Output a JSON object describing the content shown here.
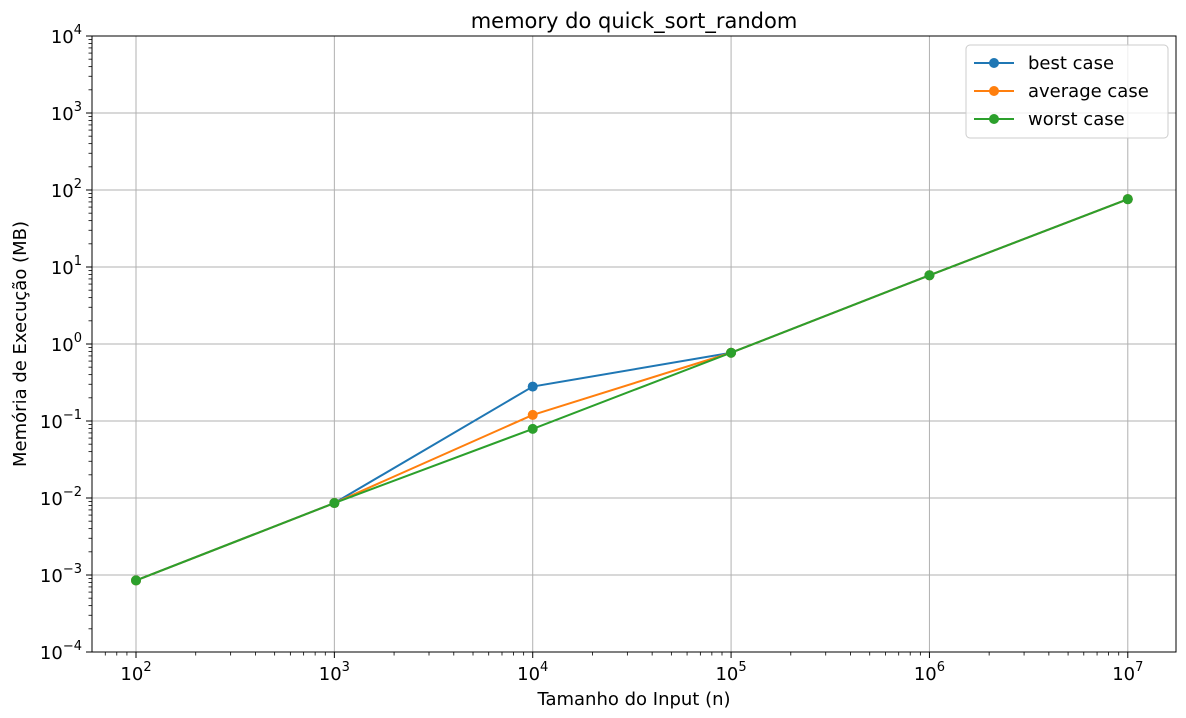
{
  "chart_data": {
    "type": "line",
    "title": "memory do quick_sort_random",
    "xlabel": "Tamanho do Input (n)",
    "ylabel": "Memória de Execução (MB)",
    "xscale": "log",
    "yscale": "log",
    "x": [
      100,
      1000,
      10000,
      100000,
      1000000,
      10000000
    ],
    "xlim": [
      60,
      17500000
    ],
    "ylim": [
      0.0001,
      10000
    ],
    "x_tick_labels": [
      {
        "base": "10",
        "exp": "2",
        "value": 100
      },
      {
        "base": "10",
        "exp": "3",
        "value": 1000
      },
      {
        "base": "10",
        "exp": "4",
        "value": 10000
      },
      {
        "base": "10",
        "exp": "5",
        "value": 100000
      },
      {
        "base": "10",
        "exp": "6",
        "value": 1000000
      },
      {
        "base": "10",
        "exp": "7",
        "value": 10000000
      }
    ],
    "y_tick_labels": [
      {
        "base": "10",
        "exp": "−4",
        "value": 0.0001
      },
      {
        "base": "10",
        "exp": "−3",
        "value": 0.001
      },
      {
        "base": "10",
        "exp": "−2",
        "value": 0.01
      },
      {
        "base": "10",
        "exp": "−1",
        "value": 0.1
      },
      {
        "base": "10",
        "exp": "0",
        "value": 1
      },
      {
        "base": "10",
        "exp": "1",
        "value": 10
      },
      {
        "base": "10",
        "exp": "2",
        "value": 100
      },
      {
        "base": "10",
        "exp": "3",
        "value": 1000
      },
      {
        "base": "10",
        "exp": "4",
        "value": 10000
      }
    ],
    "grid": true,
    "legend_position": "top-right",
    "series": [
      {
        "name": "best case",
        "color": "#1f77b4",
        "values": [
          0.00085,
          0.0086,
          0.28,
          0.77,
          7.8,
          76
        ]
      },
      {
        "name": "average case",
        "color": "#ff7f0e",
        "values": [
          0.00085,
          0.0086,
          0.12,
          0.77,
          7.8,
          76
        ]
      },
      {
        "name": "worst case",
        "color": "#2ca02c",
        "values": [
          0.00085,
          0.0086,
          0.079,
          0.77,
          7.8,
          76
        ]
      }
    ]
  }
}
